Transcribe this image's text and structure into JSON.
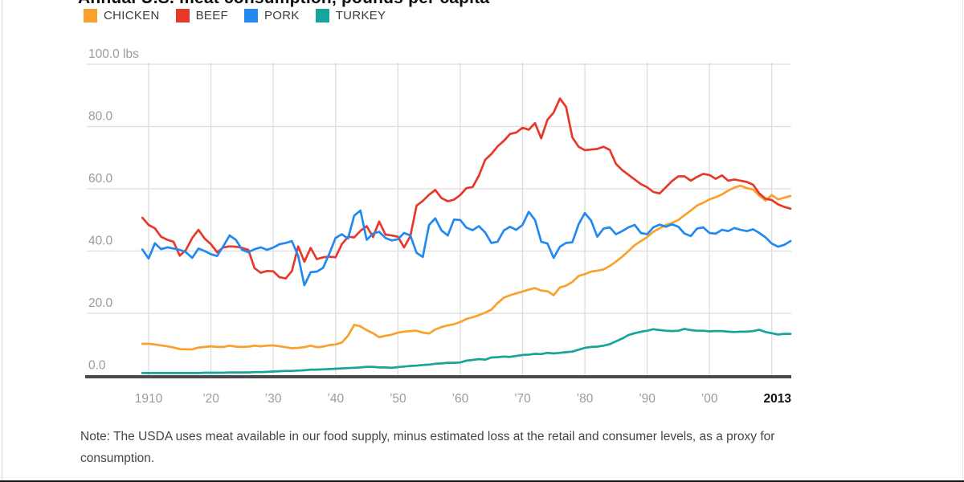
{
  "title": "Annual U.S. meat consumption, pounds per capita",
  "note": "Note: The USDA uses meat available in our food supply, minus estimated loss at the retail and consumer levels, as a proxy for consumption.",
  "colors": {
    "chicken": "#F9A02D",
    "beef": "#E8382A",
    "pork": "#2289F0",
    "turkey": "#16A49B",
    "grid": "#DDDDDD",
    "axis": "#4A4A4A",
    "tick_text": "#9B9B9B",
    "tick_text_emphasis": "#111111"
  },
  "chart_data": {
    "type": "line",
    "title": "Annual U.S. meat consumption, pounds per capita",
    "ylabel": "pounds per capita",
    "unit": "lbs",
    "ylim": [
      0,
      100
    ],
    "xlim": [
      1909,
      2013
    ],
    "grid": true,
    "legend_position": "top-left",
    "years": [
      1909,
      1910,
      1911,
      1912,
      1913,
      1914,
      1915,
      1916,
      1917,
      1918,
      1919,
      1920,
      1921,
      1922,
      1923,
      1924,
      1925,
      1926,
      1927,
      1928,
      1929,
      1930,
      1931,
      1932,
      1933,
      1934,
      1935,
      1936,
      1937,
      1938,
      1939,
      1940,
      1941,
      1942,
      1943,
      1944,
      1945,
      1946,
      1947,
      1948,
      1949,
      1950,
      1951,
      1952,
      1953,
      1954,
      1955,
      1956,
      1957,
      1958,
      1959,
      1960,
      1961,
      1962,
      1963,
      1964,
      1965,
      1966,
      1967,
      1968,
      1969,
      1970,
      1971,
      1972,
      1973,
      1974,
      1975,
      1976,
      1977,
      1978,
      1979,
      1980,
      1981,
      1982,
      1983,
      1984,
      1985,
      1986,
      1987,
      1988,
      1989,
      1990,
      1991,
      1992,
      1993,
      1994,
      1995,
      1996,
      1997,
      1998,
      1999,
      2000,
      2001,
      2002,
      2003,
      2004,
      2005,
      2006,
      2007,
      2008,
      2009,
      2010,
      2011,
      2012,
      2013
    ],
    "series": [
      {
        "name": "CHICKEN",
        "color": "#F9A02D",
        "values": [
          10.2,
          10.2,
          10.0,
          9.7,
          9.4,
          9.0,
          8.5,
          8.4,
          8.4,
          9.0,
          9.2,
          9.4,
          9.2,
          9.2,
          9.6,
          9.3,
          9.2,
          9.3,
          9.6,
          9.4,
          9.6,
          9.7,
          9.4,
          9.1,
          8.8,
          8.9,
          9.1,
          9.6,
          9.1,
          9.3,
          9.8,
          10.0,
          10.6,
          12.8,
          16.3,
          15.8,
          14.6,
          13.6,
          12.3,
          12.8,
          13.1,
          13.8,
          14.1,
          14.3,
          14.4,
          13.8,
          13.5,
          14.8,
          15.6,
          16.1,
          16.5,
          17.2,
          18.2,
          18.7,
          19.4,
          20.2,
          21.2,
          23.3,
          25.0,
          25.8,
          26.4,
          27.0,
          27.6,
          28.1,
          27.3,
          27.1,
          25.8,
          28.3,
          28.9,
          30.1,
          32.0,
          32.6,
          33.4,
          33.7,
          34.1,
          35.2,
          36.6,
          38.2,
          40.0,
          41.9,
          43.2,
          44.5,
          46.2,
          47.3,
          48.4,
          49.0,
          50.0,
          51.5,
          53.0,
          54.6,
          55.5,
          56.6,
          57.3,
          58.2,
          59.4,
          60.4,
          61.0,
          60.2,
          59.8,
          57.8,
          56.2,
          58.0,
          56.6,
          57.1,
          57.7
        ]
      },
      {
        "name": "BEEF",
        "color": "#E8382A",
        "values": [
          50.7,
          48.4,
          47.3,
          44.6,
          43.6,
          43.0,
          38.5,
          40.4,
          44.2,
          46.8,
          44.0,
          42.2,
          39.6,
          41.2,
          41.5,
          41.4,
          41.0,
          40.4,
          34.5,
          33.0,
          33.6,
          33.5,
          31.6,
          31.2,
          33.6,
          41.5,
          36.6,
          41.0,
          37.4,
          38.0,
          38.2,
          38.0,
          42.2,
          44.6,
          44.4,
          46.5,
          48.0,
          44.5,
          49.5,
          45.3,
          45.0,
          44.6,
          41.2,
          44.8,
          54.6,
          56.1,
          58.1,
          59.6,
          57.0,
          56.0,
          56.5,
          58.0,
          60.2,
          60.6,
          64.2,
          69.3,
          71.2,
          73.6,
          75.4,
          77.6,
          78.1,
          79.6,
          79.0,
          81.1,
          76.2,
          82.2,
          84.5,
          89.0,
          86.3,
          76.5,
          73.5,
          72.4,
          72.6,
          72.8,
          73.5,
          72.5,
          68.0,
          66.0,
          64.5,
          63.0,
          61.5,
          60.5,
          59.0,
          58.5,
          60.5,
          62.5,
          64.0,
          64.0,
          62.6,
          63.8,
          64.8,
          64.4,
          63.2,
          64.3,
          62.6,
          63.0,
          62.6,
          62.2,
          61.3,
          58.5,
          56.8,
          56.4,
          55.0,
          54.2,
          53.6
        ]
      },
      {
        "name": "PORK",
        "color": "#2289F0",
        "values": [
          40.5,
          37.6,
          42.5,
          40.6,
          41.2,
          40.8,
          40.4,
          39.6,
          37.8,
          40.8,
          40.0,
          39.0,
          38.4,
          41.6,
          45.0,
          43.6,
          40.4,
          39.6,
          40.6,
          41.2,
          40.4,
          41.1,
          42.2,
          42.6,
          43.2,
          38.4,
          29.0,
          33.2,
          33.4,
          34.6,
          39.2,
          44.2,
          45.4,
          44.0,
          51.4,
          53.0,
          43.6,
          45.6,
          46.2,
          44.2,
          43.4,
          43.8,
          45.8,
          45.0,
          39.4,
          38.1,
          48.4,
          50.5,
          46.6,
          45.0,
          50.1,
          50.0,
          47.5,
          46.7,
          48.0,
          46.0,
          42.6,
          43.0,
          46.6,
          47.8,
          46.8,
          48.4,
          52.6,
          50.0,
          43.0,
          42.4,
          37.8,
          41.4,
          42.6,
          42.8,
          48.6,
          52.2,
          49.8,
          44.6,
          47.2,
          47.6,
          45.4,
          46.4,
          47.6,
          48.4,
          45.8,
          45.4,
          47.6,
          48.5,
          47.8,
          48.6,
          47.8,
          45.6,
          44.8,
          47.2,
          47.6,
          45.8,
          45.6,
          46.8,
          46.4,
          47.4,
          46.8,
          46.4,
          47.0,
          45.8,
          44.4,
          42.4,
          41.4,
          42.0,
          43.2
        ]
      },
      {
        "name": "TURKEY",
        "color": "#16A49B",
        "values": [
          0.8,
          0.8,
          0.8,
          0.8,
          0.8,
          0.8,
          0.8,
          0.8,
          0.8,
          0.8,
          0.9,
          0.9,
          0.9,
          0.9,
          1.0,
          1.0,
          1.0,
          1.0,
          1.1,
          1.1,
          1.2,
          1.3,
          1.4,
          1.5,
          1.5,
          1.6,
          1.7,
          1.9,
          1.9,
          2.0,
          2.1,
          2.2,
          2.3,
          2.4,
          2.5,
          2.6,
          2.8,
          2.8,
          2.6,
          2.6,
          2.5,
          2.7,
          2.9,
          3.1,
          3.2,
          3.4,
          3.5,
          3.8,
          3.9,
          4.1,
          4.1,
          4.2,
          4.8,
          5.0,
          5.3,
          5.1,
          5.8,
          5.9,
          6.1,
          6.0,
          6.3,
          6.6,
          6.7,
          7.0,
          6.9,
          7.3,
          7.1,
          7.3,
          7.5,
          7.7,
          8.3,
          8.9,
          9.2,
          9.3,
          9.6,
          10.1,
          11.0,
          11.9,
          13.0,
          13.6,
          14.1,
          14.4,
          14.9,
          14.6,
          14.4,
          14.3,
          14.4,
          15.0,
          14.6,
          14.4,
          14.4,
          14.2,
          14.3,
          14.3,
          14.1,
          14.0,
          14.1,
          14.1,
          14.3,
          14.7,
          14.0,
          13.6,
          13.2,
          13.4,
          13.4
        ]
      }
    ],
    "yticks": [
      {
        "value": 0,
        "label": "0.0"
      },
      {
        "value": 20,
        "label": "20.0"
      },
      {
        "value": 40,
        "label": "40.0"
      },
      {
        "value": 60,
        "label": "60.0"
      },
      {
        "value": 80,
        "label": "80.0"
      },
      {
        "value": 100,
        "label": "100.0 lbs"
      }
    ],
    "xticks": [
      {
        "year": 1910,
        "label": "1910"
      },
      {
        "year": 1920,
        "label": "’20"
      },
      {
        "year": 1930,
        "label": "’30"
      },
      {
        "year": 1940,
        "label": "’40"
      },
      {
        "year": 1950,
        "label": "’50"
      },
      {
        "year": 1960,
        "label": "’60"
      },
      {
        "year": 1970,
        "label": "’70"
      },
      {
        "year": 1980,
        "label": "’80"
      },
      {
        "year": 1990,
        "label": "’90"
      },
      {
        "year": 2000,
        "label": "’00"
      },
      {
        "year": 2013,
        "label": "2013",
        "emphasis": true
      }
    ]
  }
}
